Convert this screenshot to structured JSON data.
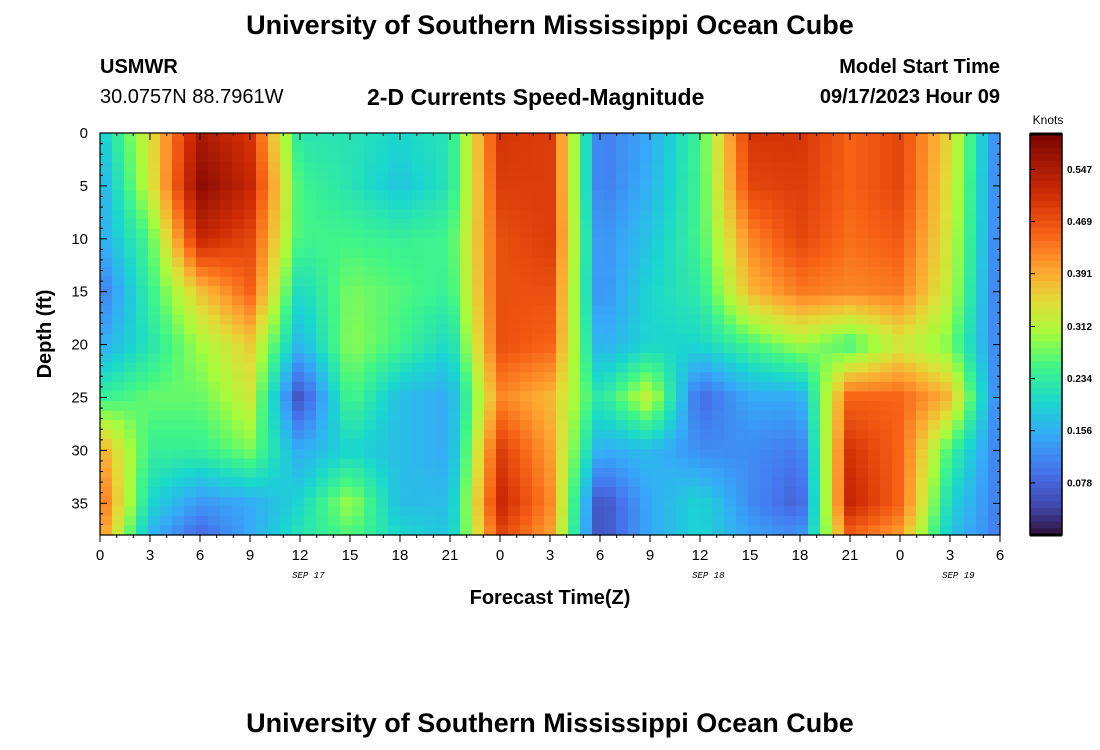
{
  "header": {
    "title": "University of Southern Mississippi Ocean Cube",
    "station": "USMWR",
    "location": "30.0757N  88.7961W",
    "subtitle": "2-D Currents Speed-Magnitude",
    "start_label": "Model Start Time",
    "start_value": "09/17/2023 Hour 09"
  },
  "footer": {
    "title": "University of Southern Mississippi Ocean Cube"
  },
  "chart_data": {
    "type": "heatmap",
    "title": "2-D Currents Speed-Magnitude",
    "xlabel": "Forecast Time(Z)",
    "ylabel": "Depth (ft)",
    "x_tick_labels": [
      "0",
      "3",
      "6",
      "9",
      "12",
      "15",
      "18",
      "21",
      "0",
      "3",
      "6",
      "9",
      "12",
      "15",
      "18",
      "21",
      "0",
      "3",
      "6"
    ],
    "date_labels": [
      "SEP 17",
      "SEP 18",
      "SEP 19"
    ],
    "y_tick_labels": [
      "0",
      "5",
      "10",
      "15",
      "20",
      "25",
      "30",
      "35"
    ],
    "xlim": [
      0,
      54
    ],
    "ylim": [
      0,
      38
    ],
    "y_inverted": true,
    "colorbar": {
      "label": "Knots",
      "ticks": [
        "0.078",
        "0.156",
        "0.234",
        "0.312",
        "0.391",
        "0.469",
        "0.547"
      ],
      "range": [
        0,
        0.6
      ]
    },
    "speed_field_knots": {
      "x_hours": [
        0,
        3,
        6,
        9,
        12,
        15,
        18,
        21,
        24,
        27,
        30,
        33,
        36,
        39,
        42,
        45,
        48,
        51,
        54
      ],
      "y_depth_ft": [
        0,
        5,
        10,
        15,
        20,
        25,
        30,
        35,
        38
      ],
      "values": [
        [
          0.18,
          0.34,
          0.55,
          0.5,
          0.22,
          0.22,
          0.2,
          0.22,
          0.5,
          0.49,
          0.1,
          0.15,
          0.25,
          0.5,
          0.5,
          0.45,
          0.48,
          0.35,
          0.1
        ],
        [
          0.15,
          0.33,
          0.58,
          0.52,
          0.25,
          0.22,
          0.18,
          0.22,
          0.49,
          0.49,
          0.1,
          0.16,
          0.25,
          0.48,
          0.49,
          0.45,
          0.48,
          0.34,
          0.1
        ],
        [
          0.15,
          0.26,
          0.52,
          0.48,
          0.25,
          0.25,
          0.24,
          0.25,
          0.47,
          0.49,
          0.12,
          0.18,
          0.25,
          0.42,
          0.48,
          0.44,
          0.46,
          0.33,
          0.1
        ],
        [
          0.1,
          0.24,
          0.37,
          0.45,
          0.2,
          0.28,
          0.26,
          0.24,
          0.47,
          0.47,
          0.12,
          0.2,
          0.23,
          0.38,
          0.43,
          0.42,
          0.43,
          0.32,
          0.09
        ],
        [
          0.15,
          0.22,
          0.3,
          0.36,
          0.16,
          0.29,
          0.25,
          0.2,
          0.47,
          0.45,
          0.15,
          0.2,
          0.2,
          0.25,
          0.3,
          0.25,
          0.33,
          0.28,
          0.1
        ],
        [
          0.24,
          0.27,
          0.27,
          0.33,
          0.05,
          0.26,
          0.17,
          0.15,
          0.42,
          0.38,
          0.22,
          0.33,
          0.08,
          0.15,
          0.15,
          0.45,
          0.45,
          0.38,
          0.1
        ],
        [
          0.4,
          0.24,
          0.24,
          0.28,
          0.15,
          0.2,
          0.17,
          0.15,
          0.49,
          0.4,
          0.15,
          0.17,
          0.12,
          0.12,
          0.1,
          0.5,
          0.45,
          0.25,
          0.1
        ],
        [
          0.45,
          0.2,
          0.13,
          0.15,
          0.2,
          0.3,
          0.17,
          0.17,
          0.52,
          0.42,
          0.05,
          0.15,
          0.2,
          0.12,
          0.07,
          0.52,
          0.45,
          0.2,
          0.1
        ],
        [
          0.42,
          0.16,
          0.08,
          0.15,
          0.22,
          0.26,
          0.2,
          0.18,
          0.48,
          0.4,
          0.05,
          0.15,
          0.2,
          0.14,
          0.12,
          0.45,
          0.4,
          0.18,
          0.1
        ]
      ]
    }
  }
}
